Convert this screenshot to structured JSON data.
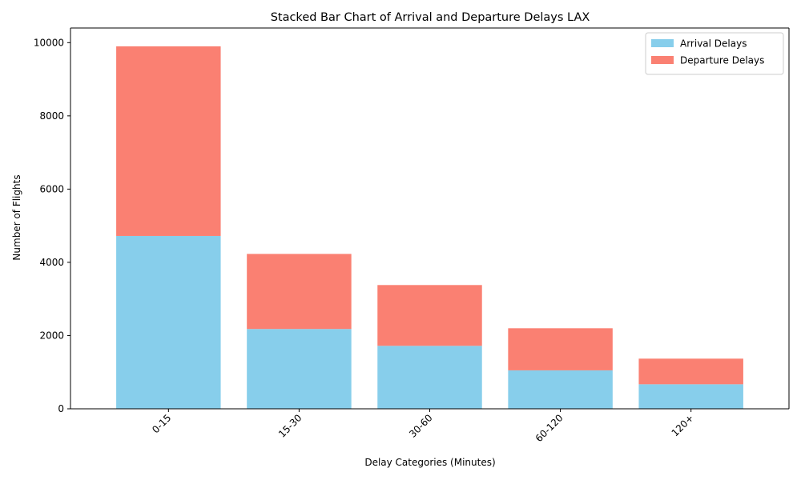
{
  "chart_data": {
    "type": "bar",
    "stacked": true,
    "title": "Stacked Bar Chart of Arrival and Departure Delays LAX",
    "xlabel": "Delay Categories (Minutes)",
    "ylabel": "Number of Flights",
    "categories": [
      "0-15",
      "15-30",
      "30-60",
      "60-120",
      "120+"
    ],
    "series": [
      {
        "name": "Arrival Delays",
        "color": "#87CEEB",
        "values": [
          4720,
          2180,
          1720,
          1050,
          670
        ]
      },
      {
        "name": "Departure Delays",
        "color": "#FA8072",
        "values": [
          5180,
          2050,
          1660,
          1150,
          700
        ]
      }
    ],
    "ylim": [
      0,
      10400
    ],
    "yticks": [
      0,
      2000,
      4000,
      6000,
      8000,
      10000
    ],
    "grid": false,
    "legend_position": "top-right",
    "x_tick_rotation": 45
  }
}
